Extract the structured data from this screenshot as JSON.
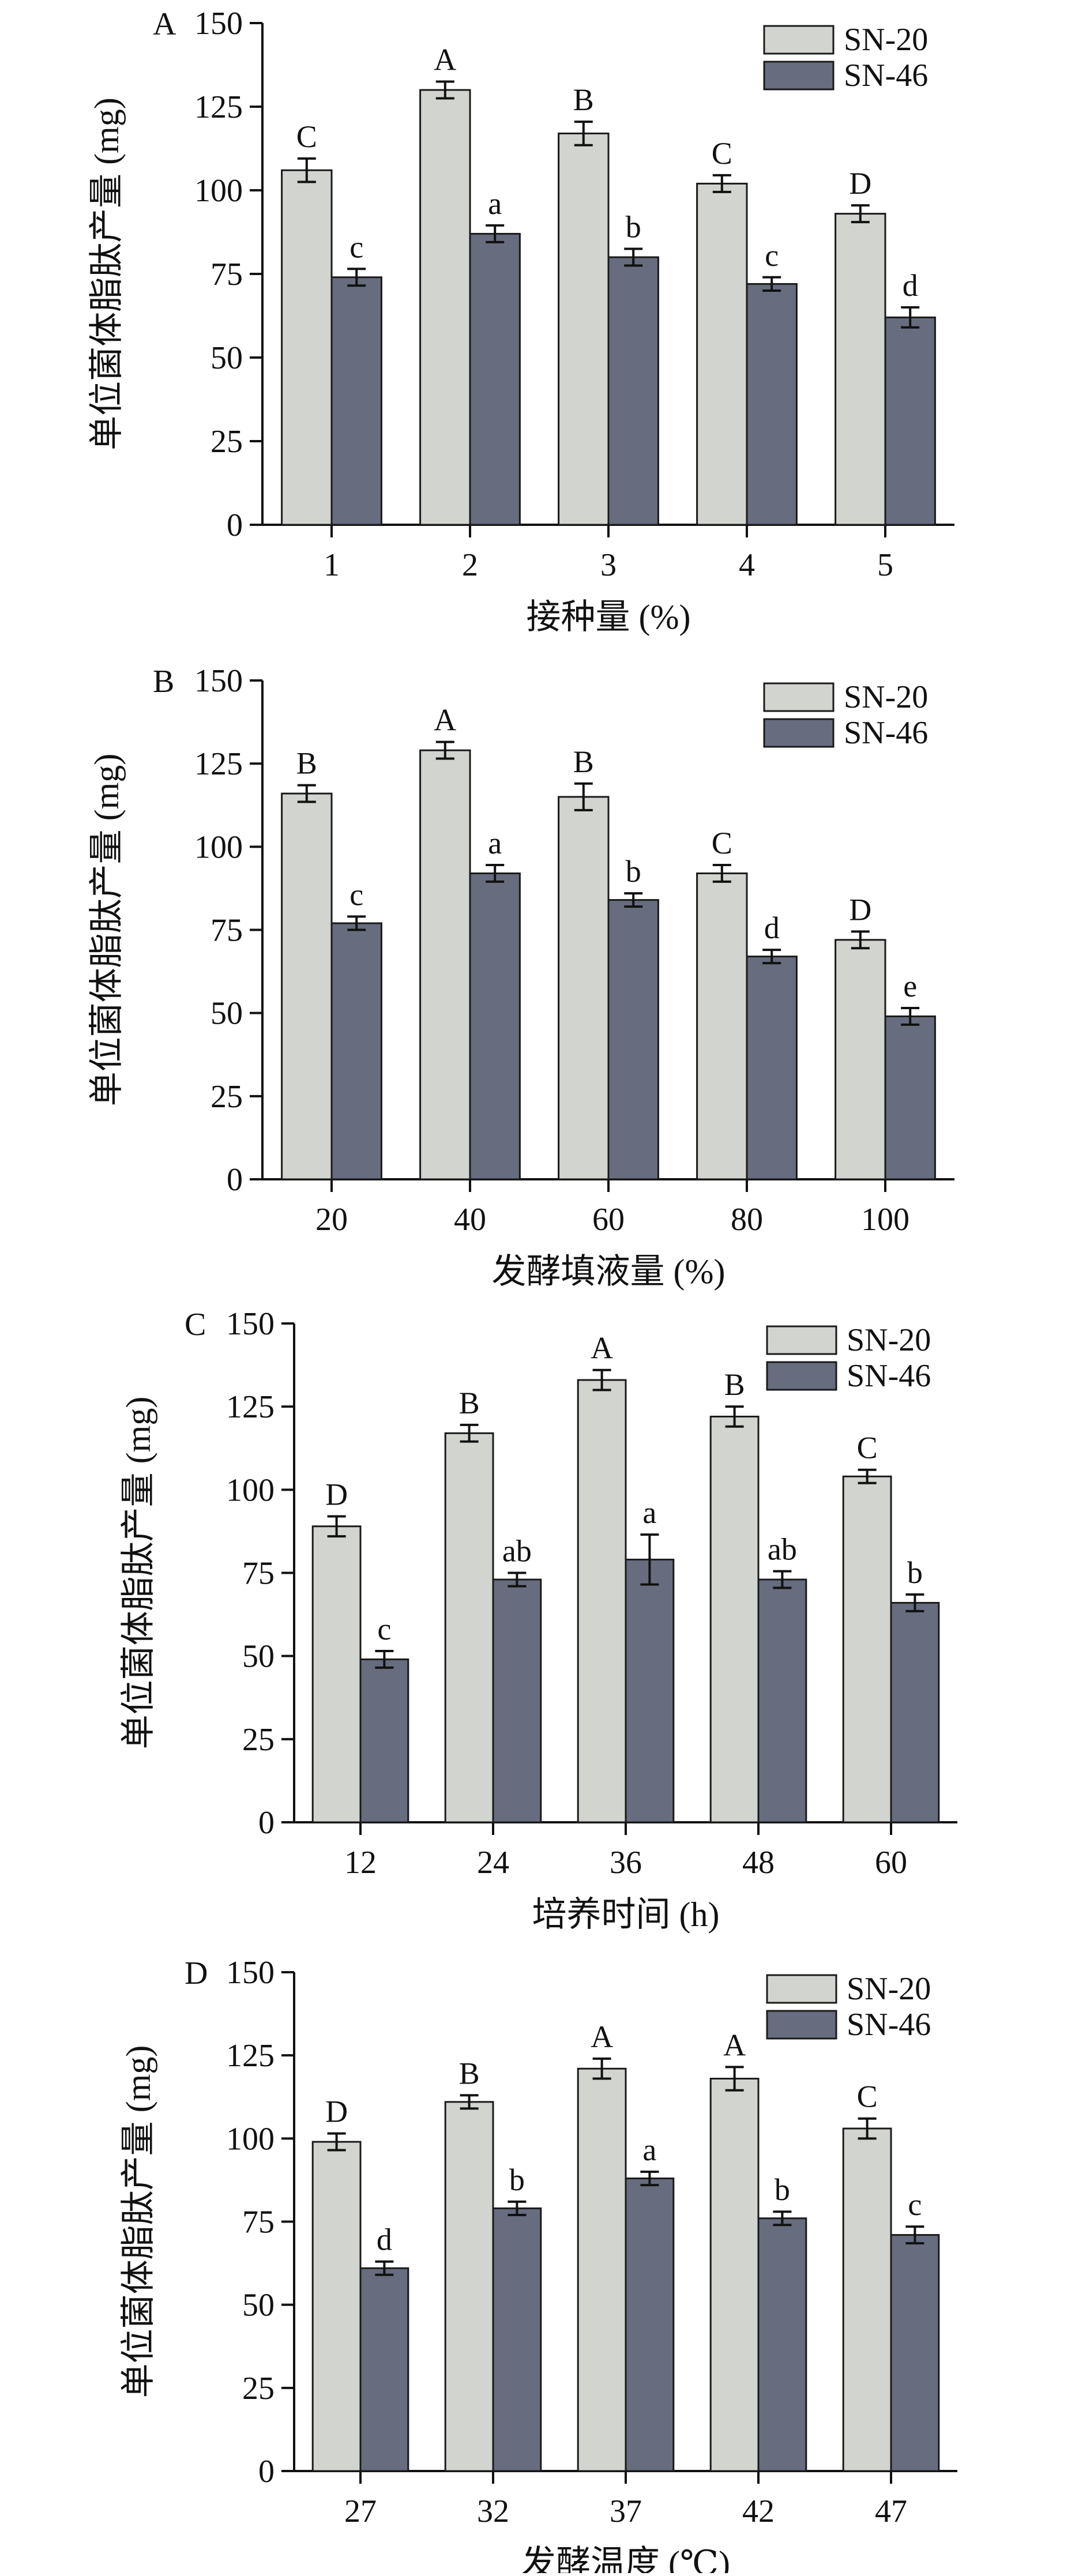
{
  "chart_data": [
    {
      "type": "bar",
      "panel": "A",
      "xlabel": "接种量 (%)",
      "ylabel": "单位菌体脂肽产量 (mg)",
      "ylim": [
        0,
        150
      ],
      "yticks": [
        0,
        25,
        50,
        75,
        100,
        125,
        150
      ],
      "categories": [
        "1",
        "2",
        "3",
        "4",
        "5"
      ],
      "legend_position": "top-right",
      "series": [
        {
          "name": "SN-20",
          "color": "#d2d4cf",
          "values": [
            106,
            130,
            117,
            102,
            93
          ],
          "errors": [
            3.5,
            2.5,
            3.5,
            2.5,
            2.5
          ],
          "letters": [
            "C",
            "A",
            "B",
            "C",
            "D"
          ]
        },
        {
          "name": "SN-46",
          "color": "#676c7f",
          "values": [
            74,
            87,
            80,
            72,
            62
          ],
          "errors": [
            2.5,
            2.5,
            2.5,
            2.0,
            3.0
          ],
          "letters": [
            "c",
            "a",
            "b",
            "c",
            "d"
          ]
        }
      ]
    },
    {
      "type": "bar",
      "panel": "B",
      "xlabel": "发酵填液量 (%)",
      "ylabel": "单位菌体脂肽产量 (mg)",
      "ylim": [
        0,
        150
      ],
      "yticks": [
        0,
        25,
        50,
        75,
        100,
        125,
        150
      ],
      "categories": [
        "20",
        "40",
        "60",
        "80",
        "100"
      ],
      "legend_position": "top-right",
      "series": [
        {
          "name": "SN-20",
          "color": "#d2d4cf",
          "values": [
            116,
            129,
            115,
            92,
            72
          ],
          "errors": [
            2.5,
            2.5,
            4.0,
            2.5,
            2.5
          ],
          "letters": [
            "B",
            "A",
            "B",
            "C",
            "D"
          ]
        },
        {
          "name": "SN-46",
          "color": "#676c7f",
          "values": [
            77,
            92,
            84,
            67,
            49
          ],
          "errors": [
            2.0,
            2.5,
            2.0,
            2.0,
            2.5
          ],
          "letters": [
            "c",
            "a",
            "b",
            "d",
            "e"
          ]
        }
      ]
    },
    {
      "type": "bar",
      "panel": "C",
      "xlabel": "培养时间 (h)",
      "ylabel": "单位菌体脂肽产量 (mg)",
      "ylim": [
        0,
        150
      ],
      "yticks": [
        0,
        25,
        50,
        75,
        100,
        125,
        150
      ],
      "categories": [
        "12",
        "24",
        "36",
        "48",
        "60"
      ],
      "legend_position": "top-right",
      "series": [
        {
          "name": "SN-20",
          "color": "#d2d4cf",
          "values": [
            89,
            117,
            133,
            122,
            104
          ],
          "errors": [
            3.0,
            2.5,
            3.0,
            3.0,
            2.0
          ],
          "letters": [
            "D",
            "B",
            "A",
            "B",
            "C"
          ]
        },
        {
          "name": "SN-46",
          "color": "#676c7f",
          "values": [
            49,
            73,
            79,
            73,
            66
          ],
          "errors": [
            2.5,
            2.0,
            7.5,
            2.5,
            2.5
          ],
          "letters": [
            "c",
            "ab",
            "a",
            "ab",
            "b"
          ]
        }
      ]
    },
    {
      "type": "bar",
      "panel": "D",
      "xlabel": "发酵温度 (℃)",
      "ylabel": "单位菌体脂肽产量 (mg)",
      "ylim": [
        0,
        150
      ],
      "yticks": [
        0,
        25,
        50,
        75,
        100,
        125,
        150
      ],
      "categories": [
        "27",
        "32",
        "37",
        "42",
        "47"
      ],
      "legend_position": "top-right",
      "series": [
        {
          "name": "SN-20",
          "color": "#d2d4cf",
          "values": [
            99,
            111,
            121,
            118,
            103
          ],
          "errors": [
            2.5,
            2.0,
            3.0,
            3.5,
            3.0
          ],
          "letters": [
            "D",
            "B",
            "A",
            "A",
            "C"
          ]
        },
        {
          "name": "SN-46",
          "color": "#676c7f",
          "values": [
            61,
            79,
            88,
            76,
            71
          ],
          "errors": [
            2.0,
            2.0,
            2.0,
            2.0,
            2.5
          ],
          "letters": [
            "d",
            "b",
            "a",
            "b",
            "c"
          ]
        }
      ]
    }
  ]
}
